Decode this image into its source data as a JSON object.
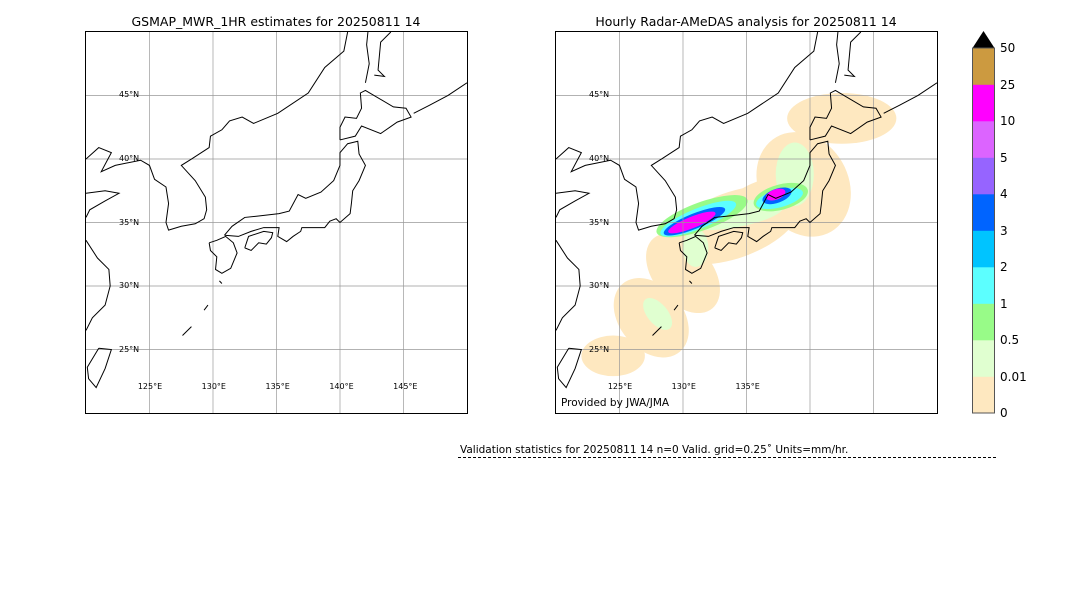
{
  "left_panel": {
    "title": "GSMAP_MWR_1HR estimates for 20250811 14",
    "lat_labels": [
      "45°N",
      "40°N",
      "35°N",
      "30°N",
      "25°N"
    ],
    "lon_labels": [
      "125°E",
      "130°E",
      "135°E",
      "140°E",
      "145°E"
    ]
  },
  "right_panel": {
    "title": "Hourly Radar-AMeDAS analysis for 20250811 14",
    "lat_labels": [
      "45°N",
      "40°N",
      "35°N",
      "30°N",
      "25°N"
    ],
    "lon_labels": [
      "125°E",
      "130°E",
      "135°E"
    ],
    "credit": "Provided by JWA/JMA"
  },
  "colorbar": {
    "ticks": [
      "0",
      "0.01",
      "0.5",
      "1",
      "2",
      "3",
      "4",
      "5",
      "10",
      "25",
      "50"
    ],
    "colors": [
      "#fee8c0",
      "#e0ffd0",
      "#98fb88",
      "#5cffff",
      "#00c4ff",
      "#0064ff",
      "#9664ff",
      "#dc64ff",
      "#ff00ff",
      "#cc9a40"
    ],
    "extend_color": "#000000"
  },
  "validation": {
    "text": "Validation statistics for 20250811 14  n=0 Valid. grid=0.25˚ Units=mm/hr."
  }
}
